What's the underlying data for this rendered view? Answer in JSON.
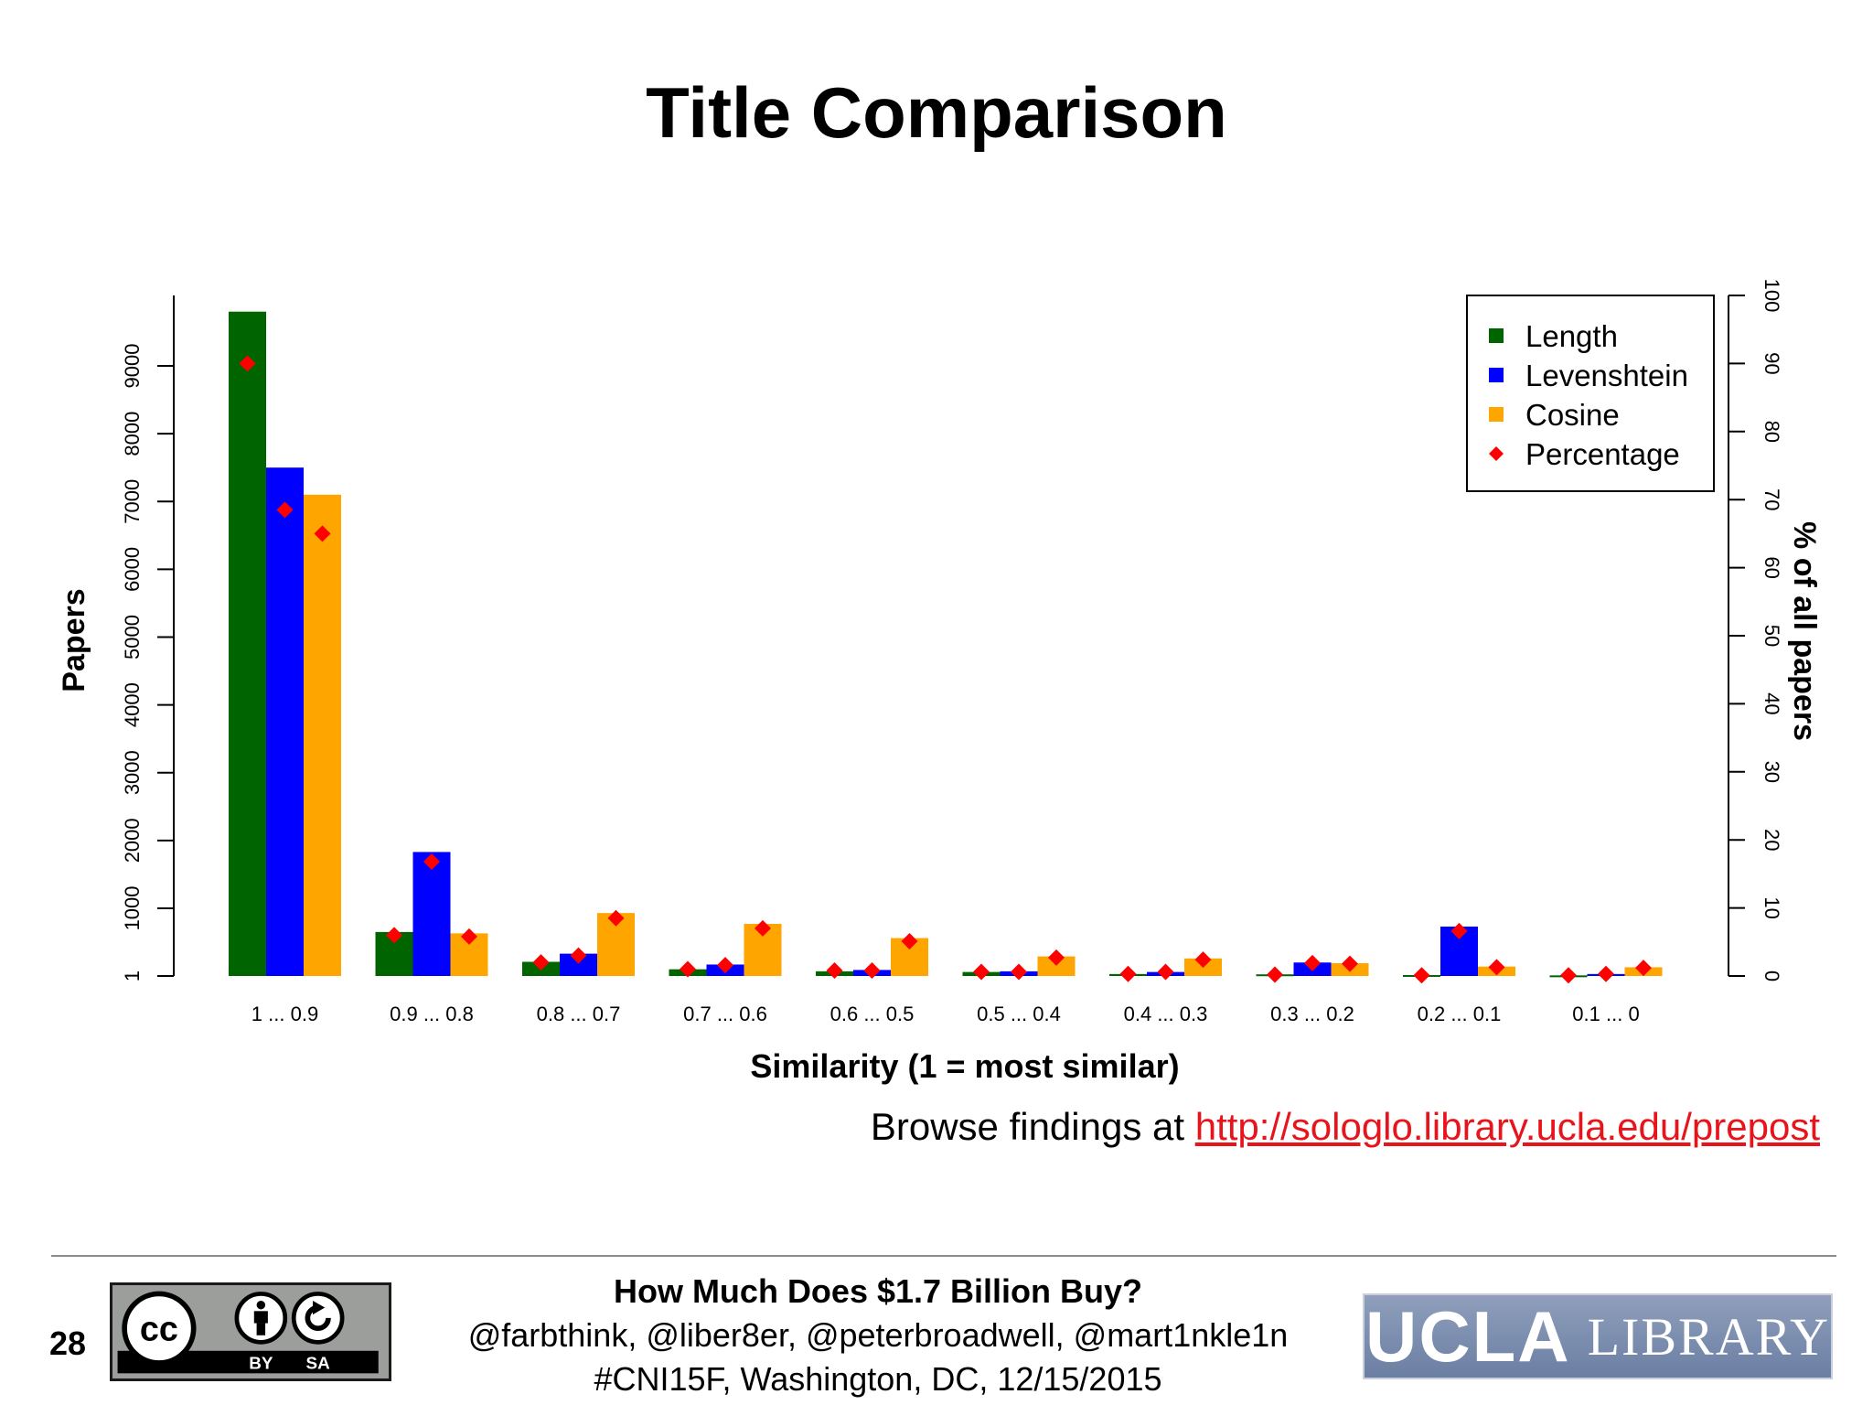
{
  "slide": {
    "title": "Title Comparison",
    "browse_prefix": "Browse findings at",
    "browse_link": "http://sologlo.library.ucla.edu/prepost",
    "page_number": "28",
    "footer_line1": "How Much Does $1.7 Billion Buy?",
    "footer_line2": "@farbthink, @liber8er, @peterbroadwell, @mart1nkle1n",
    "footer_line3": "#CNI15F, Washington, DC, 12/15/2015",
    "license_labels": [
      "BY",
      "SA"
    ],
    "license_cc": "cc",
    "logo_text_1": "UCLA",
    "logo_text_2": "LIBRARY"
  },
  "chart_data": {
    "type": "bar",
    "title": "Title Comparison",
    "xlabel": "Similarity (1 = most similar)",
    "ylabel": "Papers",
    "y2label": "% of all papers",
    "ylim": [
      1,
      10000
    ],
    "y2lim": [
      0,
      100
    ],
    "yticks": [
      "1",
      "1000",
      "2000",
      "3000",
      "4000",
      "5000",
      "6000",
      "7000",
      "8000",
      "9000"
    ],
    "y2ticks": [
      "0",
      "10",
      "20",
      "30",
      "40",
      "50",
      "60",
      "70",
      "80",
      "90",
      "100"
    ],
    "grid": false,
    "legend_position": "top-right",
    "categories": [
      "1 ... 0.9",
      "0.9 ... 0.8",
      "0.8 ... 0.7",
      "0.7 ... 0.6",
      "0.6 ... 0.5",
      "0.5 ... 0.4",
      "0.4 ... 0.3",
      "0.3 ... 0.2",
      "0.2 ... 0.1",
      "0.1 ... 0"
    ],
    "series": [
      {
        "name": "Length",
        "color": "#006400",
        "values": [
          9800,
          650,
          210,
          100,
          70,
          60,
          30,
          25,
          15,
          10
        ],
        "percentages": [
          90,
          6,
          2,
          1,
          0.8,
          0.6,
          0.3,
          0.2,
          0.1,
          0.1
        ]
      },
      {
        "name": "Levenshtein",
        "color": "#0000ff",
        "values": [
          7500,
          1830,
          330,
          170,
          90,
          70,
          60,
          200,
          730,
          30
        ],
        "percentages": [
          68.5,
          16.8,
          3,
          1.6,
          0.8,
          0.6,
          0.6,
          1.9,
          6.6,
          0.3
        ]
      },
      {
        "name": "Cosine",
        "color": "#ffa500",
        "values": [
          7100,
          630,
          930,
          770,
          560,
          290,
          260,
          190,
          140,
          130
        ],
        "percentages": [
          65,
          5.8,
          8.5,
          7,
          5.1,
          2.7,
          2.4,
          1.8,
          1.3,
          1.2
        ]
      }
    ],
    "percentage_series": {
      "name": "Percentage",
      "color": "#ff0000",
      "marker": "diamond"
    }
  }
}
